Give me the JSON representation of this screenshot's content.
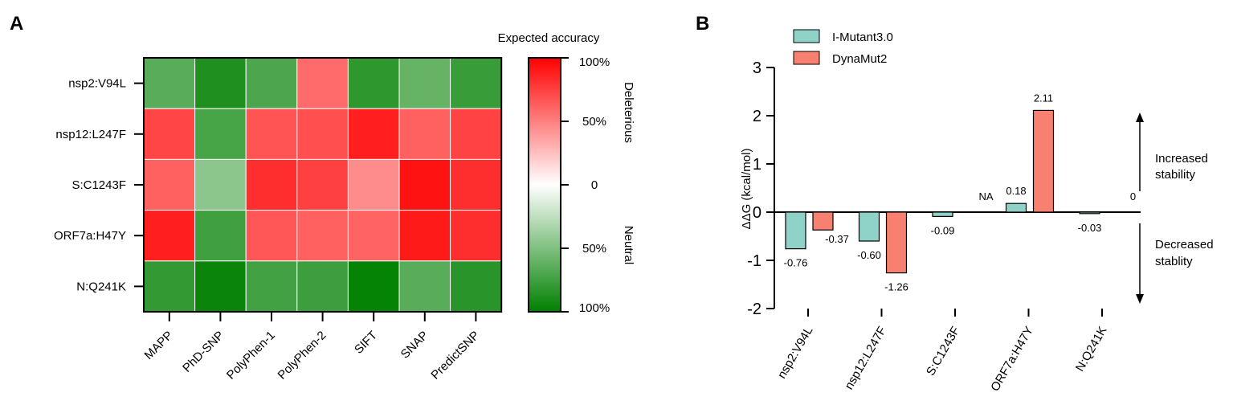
{
  "chart_data": [
    {
      "panel": "A",
      "type": "heatmap",
      "rows": [
        "nsp2:V94L",
        "nsp12:L247F",
        "S:C1243F",
        "ORF7a:H47Y",
        "N:Q241K"
      ],
      "columns": [
        "MAPP",
        "PhD-SNP",
        "PolyPhen-1",
        "PolyPhen-2",
        "SIFT",
        "SNAP",
        "PredictSNP"
      ],
      "values": [
        [
          -65,
          -88,
          -70,
          58,
          -82,
          -60,
          -78
        ],
        [
          73,
          -72,
          67,
          69,
          88,
          62,
          74
        ],
        [
          62,
          -45,
          82,
          75,
          45,
          93,
          82
        ],
        [
          88,
          -75,
          66,
          62,
          61,
          90,
          82
        ],
        [
          -80,
          -96,
          -74,
          -76,
          -98,
          -65,
          -84
        ]
      ],
      "legend": {
        "title": "Expected accuracy",
        "ticks": [
          "100%",
          "50%",
          "0",
          "50%",
          "100%"
        ],
        "upper_label": "Deleterious",
        "lower_label": "Neutral",
        "high_color": "#ff0000",
        "mid_color": "#ffffff",
        "low_color": "#008000"
      }
    },
    {
      "panel": "B",
      "type": "bar",
      "categories": [
        "nsp2:V94L",
        "nsp12:L247F",
        "S:C1243F",
        "ORF7a:H47Y",
        "N:Q241K"
      ],
      "series": [
        {
          "name": "I-Mutant3.0",
          "values": [
            -0.76,
            -0.6,
            -0.09,
            0.18,
            -0.03
          ],
          "labels": [
            "-0.76",
            "-0.60",
            "-0.09",
            "0.18",
            "-0.03"
          ],
          "color": "#8ed2c8"
        },
        {
          "name": "DynaMut2",
          "values": [
            -0.37,
            -1.26,
            null,
            2.11,
            0
          ],
          "labels": [
            "-0.37",
            "-1.26",
            "NA",
            "2.11",
            "0"
          ],
          "color": "#f78070"
        }
      ],
      "ylabel": "ΔΔG (kcal/mol)",
      "ylim": [
        -2,
        3
      ],
      "yticks": [
        3,
        2,
        1,
        0,
        -1,
        -2
      ],
      "annotations": {
        "increased": [
          "Increased",
          "stability"
        ],
        "decreased": [
          "Decreased",
          "stablity"
        ]
      }
    }
  ],
  "panel_letters": [
    "A",
    "B"
  ]
}
